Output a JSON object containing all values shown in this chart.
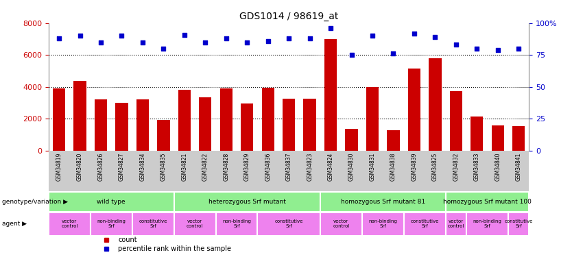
{
  "title": "GDS1014 / 98619_at",
  "samples": [
    "GSM34819",
    "GSM34820",
    "GSM34826",
    "GSM34827",
    "GSM34834",
    "GSM34835",
    "GSM34821",
    "GSM34822",
    "GSM34828",
    "GSM34829",
    "GSM34836",
    "GSM34837",
    "GSM34823",
    "GSM34824",
    "GSM34830",
    "GSM34831",
    "GSM34838",
    "GSM34839",
    "GSM34825",
    "GSM34832",
    "GSM34833",
    "GSM34840",
    "GSM34841"
  ],
  "counts": [
    3900,
    4400,
    3200,
    3000,
    3200,
    1950,
    3800,
    3350,
    3900,
    2950,
    3950,
    3250,
    3250,
    7000,
    1350,
    4000,
    1300,
    5150,
    5800,
    3750,
    2150,
    1600,
    1550
  ],
  "percentiles": [
    88,
    90,
    85,
    90,
    85,
    80,
    91,
    85,
    88,
    85,
    86,
    88,
    88,
    96,
    75,
    90,
    76,
    92,
    89,
    83,
    80,
    79,
    80
  ],
  "bar_color": "#cc0000",
  "dot_color": "#0000cc",
  "ylim_left": [
    0,
    8000
  ],
  "ylim_right": [
    0,
    100
  ],
  "yticks_left": [
    0,
    2000,
    4000,
    6000,
    8000
  ],
  "yticks_right": [
    0,
    25,
    50,
    75,
    100
  ],
  "genotype_groups": [
    {
      "label": "wild type",
      "start": 0,
      "end": 5
    },
    {
      "label": "heterozygous Srf mutant",
      "start": 6,
      "end": 12
    },
    {
      "label": "homozygous Srf mutant 81",
      "start": 13,
      "end": 18
    },
    {
      "label": "homozygous Srf mutant 100",
      "start": 19,
      "end": 22
    }
  ],
  "agent_groups": [
    {
      "label": "vector\ncontrol",
      "start": 0,
      "end": 1
    },
    {
      "label": "non-binding\nSrf",
      "start": 2,
      "end": 3
    },
    {
      "label": "constitutive\nSrf",
      "start": 4,
      "end": 5
    },
    {
      "label": "vector\ncontrol",
      "start": 6,
      "end": 7
    },
    {
      "label": "non-binding\nSrf",
      "start": 8,
      "end": 9
    },
    {
      "label": "constitutive\nSrf",
      "start": 10,
      "end": 12
    },
    {
      "label": "vector\ncontrol",
      "start": 13,
      "end": 14
    },
    {
      "label": "non-binding\nSrf",
      "start": 15,
      "end": 16
    },
    {
      "label": "constitutive\nSrf",
      "start": 17,
      "end": 18
    },
    {
      "label": "vector\ncontrol",
      "start": 19,
      "end": 19
    },
    {
      "label": "non-binding\nSrf",
      "start": 20,
      "end": 21
    },
    {
      "label": "constitutive\nSrf",
      "start": 22,
      "end": 22
    }
  ],
  "background_color": "#ffffff",
  "tick_label_color_left": "#cc0000",
  "tick_label_color_right": "#0000cc",
  "genotype_row_color": "#90ee90",
  "agent_row_color": "#ee82ee",
  "sample_row_color": "#cccccc"
}
